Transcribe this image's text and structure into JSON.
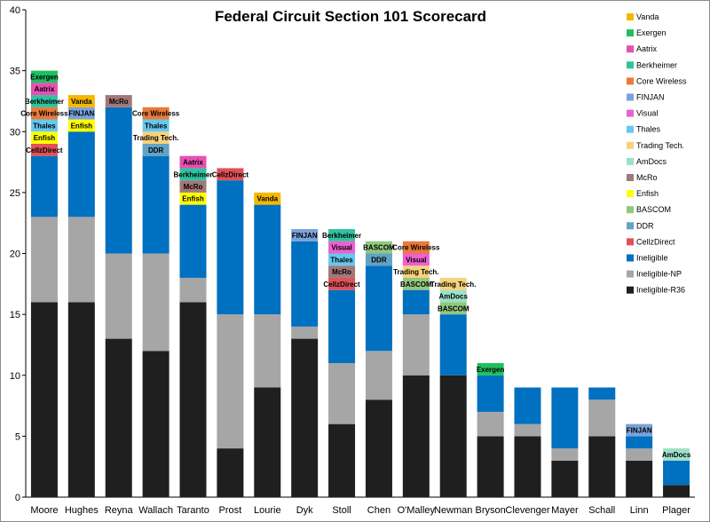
{
  "chart_data": {
    "type": "bar",
    "stacked": true,
    "title": "Federal Circuit Section 101 Scorecard",
    "xlabel": "",
    "ylabel": "",
    "ylim": [
      0,
      40
    ],
    "yticks": [
      0,
      5,
      10,
      15,
      20,
      25,
      30,
      35,
      40
    ],
    "grid": false,
    "legend_position": "right",
    "categories": [
      "Moore",
      "Hughes",
      "Reyna",
      "Wallach",
      "Taranto",
      "Prost",
      "Lourie",
      "Dyk",
      "Stoll",
      "Chen",
      "O'Malley",
      "Newman",
      "Bryson",
      "Clevenger",
      "Mayer",
      "Schall",
      "Linn",
      "Plager"
    ],
    "series": [
      {
        "name": "Ineligible-R36",
        "color": "#1f1f1f",
        "values": [
          16,
          16,
          13,
          12,
          16,
          4,
          9,
          13,
          6,
          8,
          10,
          10,
          5,
          5,
          3,
          5,
          3,
          1
        ]
      },
      {
        "name": "Ineligible-NP",
        "color": "#a6a6a6",
        "values": [
          7,
          7,
          7,
          8,
          2,
          11,
          6,
          1,
          5,
          4,
          5,
          0,
          2,
          1,
          1,
          3,
          1,
          0
        ]
      },
      {
        "name": "Ineligible",
        "color": "#0070c0",
        "values": [
          5,
          7,
          12,
          8,
          6,
          11,
          9,
          7,
          6,
          7,
          2,
          5,
          3,
          3,
          5,
          1,
          1,
          2
        ]
      },
      {
        "name": "CellzDirect",
        "color": "#e05258",
        "values": [
          1,
          0,
          0,
          0,
          0,
          1,
          0,
          0,
          1,
          0,
          0,
          0,
          0,
          0,
          0,
          0,
          0,
          0
        ]
      },
      {
        "name": "DDR",
        "color": "#62a3c4",
        "values": [
          0,
          0,
          0,
          1,
          0,
          0,
          0,
          0,
          0,
          1,
          0,
          0,
          0,
          0,
          0,
          0,
          0,
          0
        ]
      },
      {
        "name": "BASCOM",
        "color": "#92c77f",
        "values": [
          0,
          0,
          0,
          0,
          0,
          0,
          0,
          0,
          0,
          1,
          1,
          1,
          0,
          0,
          0,
          0,
          0,
          0
        ]
      },
      {
        "name": "Enfish",
        "color": "#ffff00",
        "values": [
          1,
          1,
          0,
          0,
          1,
          0,
          0,
          0,
          0,
          0,
          0,
          0,
          0,
          0,
          0,
          0,
          0,
          0
        ]
      },
      {
        "name": "McRo",
        "color": "#a1787a",
        "values": [
          0,
          0,
          1,
          0,
          1,
          0,
          0,
          0,
          1,
          0,
          0,
          0,
          0,
          0,
          0,
          0,
          0,
          0
        ]
      },
      {
        "name": "AmDocs",
        "color": "#9ee0c8",
        "values": [
          0,
          0,
          0,
          0,
          0,
          0,
          0,
          0,
          0,
          0,
          0,
          1,
          0,
          0,
          0,
          0,
          0,
          1
        ]
      },
      {
        "name": "Trading Tech.",
        "color": "#f7d27c",
        "values": [
          0,
          0,
          0,
          1,
          0,
          0,
          0,
          0,
          0,
          0,
          1,
          1,
          0,
          0,
          0,
          0,
          0,
          0
        ]
      },
      {
        "name": "Thales",
        "color": "#66c8f0",
        "values": [
          1,
          0,
          0,
          1,
          0,
          0,
          0,
          0,
          1,
          0,
          0,
          0,
          0,
          0,
          0,
          0,
          0,
          0
        ]
      },
      {
        "name": "Visual",
        "color": "#ee5fd0",
        "values": [
          0,
          0,
          0,
          0,
          0,
          0,
          0,
          0,
          1,
          0,
          1,
          0,
          0,
          0,
          0,
          0,
          0,
          0
        ]
      },
      {
        "name": "FINJAN",
        "color": "#7aa3dc",
        "values": [
          0,
          1,
          0,
          0,
          0,
          0,
          0,
          1,
          0,
          0,
          0,
          0,
          0,
          0,
          0,
          0,
          1,
          0
        ]
      },
      {
        "name": "Core Wireless",
        "color": "#ea7a3a",
        "values": [
          1,
          0,
          0,
          1,
          0,
          0,
          0,
          0,
          0,
          0,
          1,
          0,
          0,
          0,
          0,
          0,
          0,
          0
        ]
      },
      {
        "name": "Berkheimer",
        "color": "#2fc3a0",
        "values": [
          1,
          0,
          0,
          0,
          1,
          0,
          0,
          0,
          1,
          0,
          0,
          0,
          0,
          0,
          0,
          0,
          0,
          0
        ]
      },
      {
        "name": "Aatrix",
        "color": "#e84fb3",
        "values": [
          1,
          0,
          0,
          0,
          1,
          0,
          0,
          0,
          0,
          0,
          0,
          0,
          0,
          0,
          0,
          0,
          0,
          0
        ]
      },
      {
        "name": "Exergen",
        "color": "#1fbf5f",
        "values": [
          1,
          0,
          0,
          0,
          0,
          0,
          0,
          0,
          0,
          0,
          0,
          0,
          1,
          0,
          0,
          0,
          0,
          0
        ]
      },
      {
        "name": "Vanda",
        "color": "#f5b800",
        "values": [
          0,
          1,
          0,
          0,
          0,
          0,
          1,
          0,
          0,
          0,
          0,
          0,
          0,
          0,
          0,
          0,
          0,
          0
        ]
      }
    ],
    "legend_order": [
      "Vanda",
      "Exergen",
      "Aatrix",
      "Berkheimer",
      "Core Wireless",
      "FINJAN",
      "Visual",
      "Thales",
      "Trading Tech.",
      "AmDocs",
      "McRo",
      "Enfish",
      "BASCOM",
      "DDR",
      "CellzDirect",
      "Ineligible",
      "Ineligible-NP",
      "Ineligible-R36"
    ],
    "unlabeled_series": [
      "Ineligible-R36",
      "Ineligible-NP",
      "Ineligible"
    ]
  }
}
